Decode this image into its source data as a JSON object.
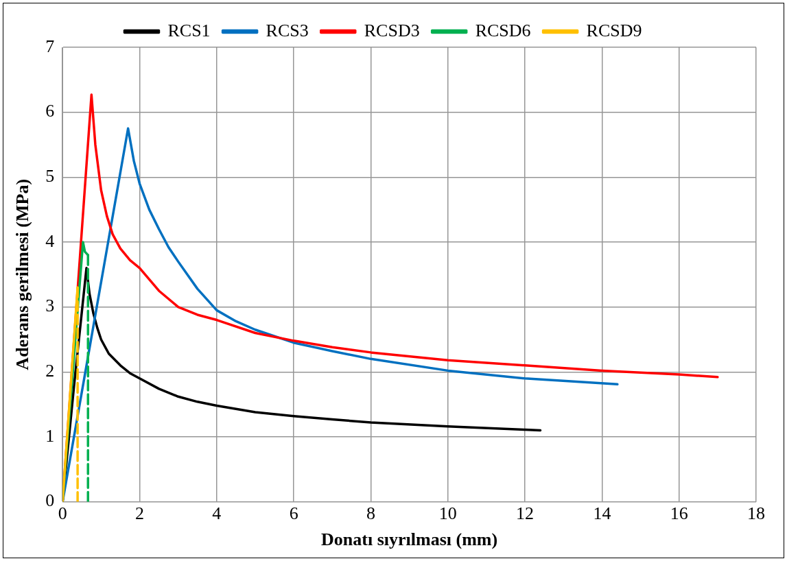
{
  "chart_data": {
    "type": "line",
    "xlabel": "Donatı sıyrılması (mm)",
    "ylabel": "Aderans gerilmesi (MPa)",
    "xlim": [
      0,
      18
    ],
    "xticks": [
      0,
      2,
      4,
      6,
      8,
      10,
      12,
      14,
      16,
      18
    ],
    "ylim": [
      0,
      7
    ],
    "yticks": [
      0,
      1,
      2,
      3,
      4,
      5,
      6,
      7
    ],
    "grid": true,
    "legend": "top",
    "marker": "none",
    "line_style": "solid",
    "series": [
      {
        "name": "RCS1",
        "color": "#000000",
        "x": [
          0,
          0.3,
          0.62,
          0.7,
          0.8,
          0.9,
          1,
          1.2,
          1.5,
          1.75,
          2,
          2.5,
          3,
          3.5,
          4,
          5,
          6,
          7,
          8,
          10,
          12,
          12.4
        ],
        "values": [
          0,
          1.8,
          3.6,
          3.2,
          2.9,
          2.68,
          2.5,
          2.28,
          2.1,
          1.98,
          1.9,
          1.74,
          1.62,
          1.54,
          1.48,
          1.38,
          1.32,
          1.27,
          1.22,
          1.16,
          1.11,
          1.1
        ]
      },
      {
        "name": "RCS3",
        "color": "#0070c0",
        "x": [
          0,
          1.7,
          1.85,
          2,
          2.25,
          2.5,
          2.75,
          3,
          3.5,
          4,
          4.5,
          5,
          6,
          7,
          8,
          10,
          12,
          14.4
        ],
        "values": [
          0,
          5.75,
          5.25,
          4.9,
          4.5,
          4.2,
          3.92,
          3.7,
          3.28,
          2.95,
          2.78,
          2.65,
          2.45,
          2.32,
          2.2,
          2.02,
          1.9,
          1.81
        ]
      },
      {
        "name": "RCSD3",
        "color": "#ff0000",
        "x": [
          0,
          0.75,
          0.85,
          1,
          1.15,
          1.3,
          1.5,
          1.75,
          2,
          2.5,
          3,
          3.5,
          4,
          5,
          6,
          7,
          8,
          10,
          12,
          14,
          16,
          17
        ],
        "values": [
          0,
          6.27,
          5.5,
          4.8,
          4.4,
          4.12,
          3.9,
          3.72,
          3.6,
          3.25,
          3.0,
          2.88,
          2.8,
          2.6,
          2.48,
          2.38,
          2.3,
          2.18,
          2.1,
          2.02,
          1.96,
          1.92
        ]
      },
      {
        "name": "RCSD6",
        "color": "#00b050",
        "x": [
          0,
          0.53,
          0.58,
          0.66
        ],
        "values": [
          0,
          4.0,
          3.85,
          3.8
        ]
      },
      {
        "color": "#00b050",
        "line_style": "dashed",
        "x": [
          0.66,
          0.66
        ],
        "values": [
          3.8,
          0
        ]
      },
      {
        "name": "RCSD9",
        "color": "#ffc000",
        "x": [
          0,
          0.39
        ],
        "values": [
          0,
          3.3
        ]
      },
      {
        "color": "#ffc000",
        "line_style": "dashed",
        "x": [
          0.39,
          0.39
        ],
        "values": [
          3.3,
          0
        ]
      }
    ]
  }
}
